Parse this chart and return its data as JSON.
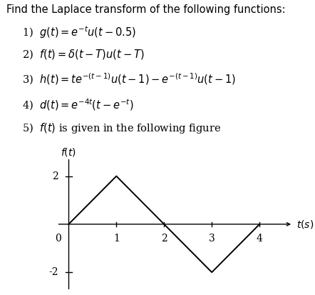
{
  "title": "Find the Laplace transform of the following functions:",
  "graph_x": [
    0,
    1,
    2,
    3,
    4
  ],
  "graph_y": [
    0,
    2,
    0,
    -2,
    0
  ],
  "ytick_vals": [
    -2,
    2
  ],
  "xtick_vals": [
    1,
    2,
    3,
    4
  ],
  "graph_xlim": [
    -0.25,
    4.7
  ],
  "graph_ylim": [
    -2.7,
    2.7
  ],
  "background_color": "#ffffff",
  "line_color": "#000000",
  "fontsize_title": 10.5,
  "fontsize_body": 10.5,
  "fontsize_axis_label": 10,
  "fontsize_tick": 10
}
